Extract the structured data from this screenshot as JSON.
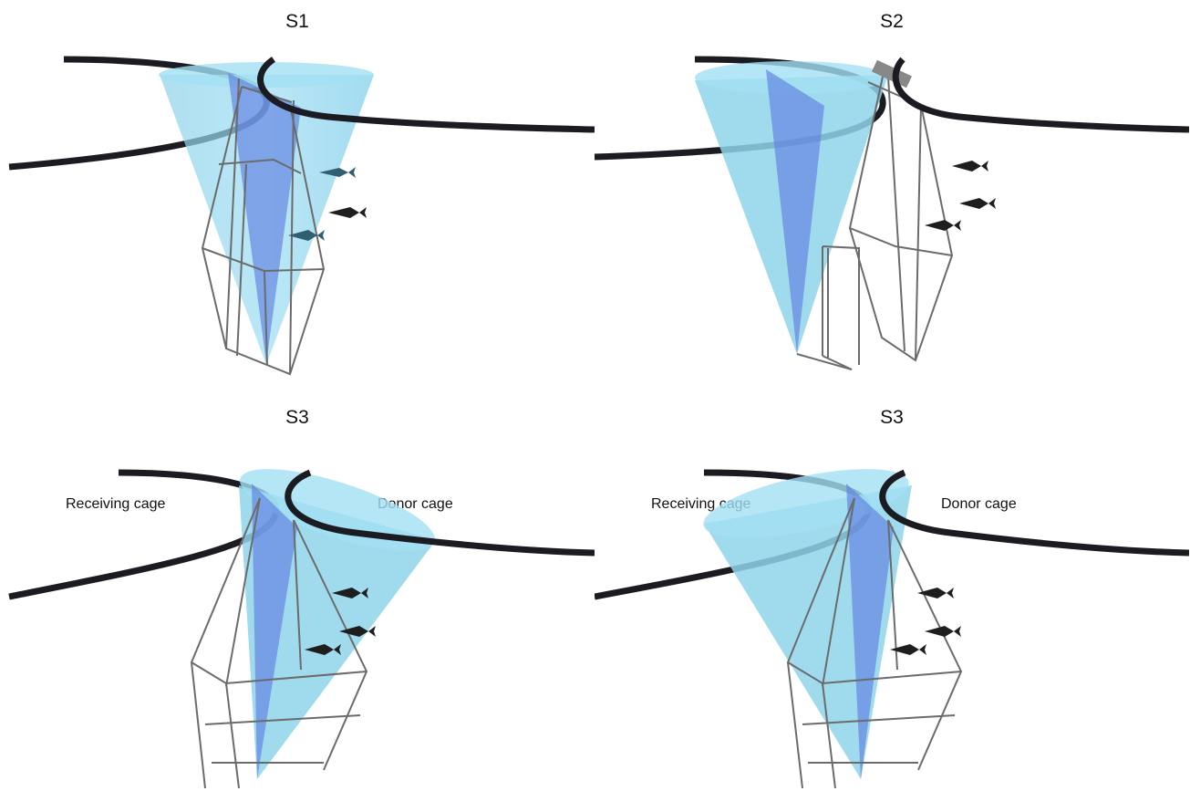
{
  "panels": [
    {
      "title": "S1",
      "labels": {
        "receiving": "",
        "donor": ""
      }
    },
    {
      "title": "S2",
      "labels": {
        "receiving": "",
        "donor": ""
      }
    },
    {
      "title": "S3",
      "labels": {
        "receiving": "Receiving cage",
        "donor": "Donor cage"
      }
    },
    {
      "title": "S3",
      "labels": {
        "receiving": "Receiving cage",
        "donor": "Donor cage"
      }
    }
  ],
  "colors": {
    "beam_cone": "#7fd0ec",
    "beam_plane": "#5f7fe0",
    "cage_ring": "#1b1c22",
    "net_frame": "#6b6b6b",
    "fish": "#1e1e1e",
    "fish_in_beam": "#2f5f70"
  }
}
